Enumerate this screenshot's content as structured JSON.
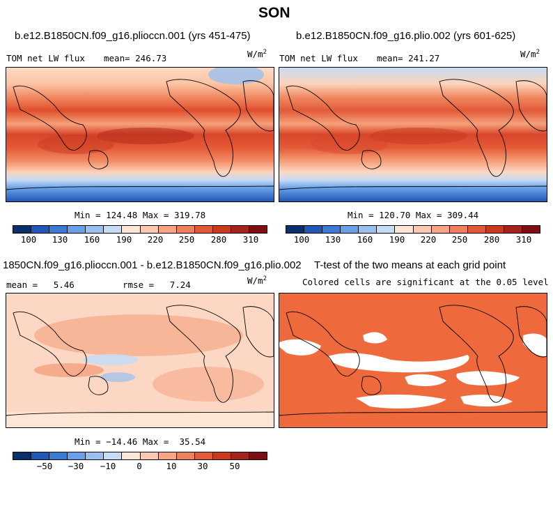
{
  "figure_title": "SON",
  "palette_full": [
    "#08306b",
    "#2158b5",
    "#3a7bd5",
    "#6aa0e8",
    "#9ac0f0",
    "#c6dbf5",
    "#fde6d6",
    "#fcc9b0",
    "#f9a584",
    "#f07f5c",
    "#e25a38",
    "#cc3a1e",
    "#a5231a",
    "#7f0e12"
  ],
  "chart_data": [
    {
      "type": "heatmap",
      "title": "b.e12.B1850CN.f09_g16.plioccn.001 (yrs 451-475)",
      "variable": "TOM net LW flux",
      "mean_label": "mean= 246.73",
      "units": "W/m",
      "units_exp": "2",
      "minmax": "Min = 124.48 Max = 319.78",
      "colorbar_ticks": [
        "100",
        "130",
        "160",
        "190",
        "220",
        "250",
        "280",
        "310"
      ]
    },
    {
      "type": "heatmap",
      "title": "b.e12.B1850CN.f09_g16.plio.002 (yrs 601-625)",
      "variable": "TOM net LW flux",
      "mean_label": "mean= 241.27",
      "units": "W/m",
      "units_exp": "2",
      "minmax": "Min = 120.70 Max = 309.44",
      "colorbar_ticks": [
        "100",
        "130",
        "160",
        "190",
        "220",
        "250",
        "280",
        "310"
      ]
    },
    {
      "type": "heatmap",
      "title": "1850CN.f09_g16.plioccn.001 - b.e12.B1850CN.f09_g16.plio.002",
      "mean_label": "mean =   5.46",
      "rmse_label": "rmse =   7.24",
      "units": "W/m",
      "units_exp": "2",
      "minmax": "Min = −14.46 Max =  35.54",
      "colorbar_ticks": [
        "−50",
        "−30",
        "−10",
        "0",
        "10",
        "30",
        "50"
      ]
    },
    {
      "type": "heatmap",
      "title": "T-test of the two means at each grid point",
      "subtitle": "Colored cells are significant at the 0.05 level",
      "significance_color": "#ee6a3c"
    }
  ]
}
